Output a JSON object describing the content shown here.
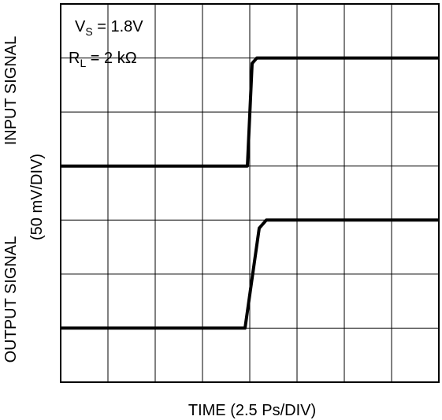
{
  "chart_data": {
    "type": "line",
    "title": "",
    "xlabel": "TIME (2.5 Ps/DIV)",
    "ylabel_input": "INPUT SIGNAL",
    "ylabel_output": "OUTPUT SIGNAL",
    "ylabel_scale": "(50 mV/DIV)",
    "grid": true,
    "x_divisions": 8,
    "y_divisions": 7,
    "xlim": [
      0,
      8
    ],
    "ylim": [
      0,
      7
    ],
    "annotations": {
      "vs_main": "V",
      "vs_sub": "S",
      "vs_value": " = 1.8V",
      "rl_main": "R",
      "rl_sub": "L",
      "rl_value": " = 2 kΩ"
    },
    "series": [
      {
        "role": "input",
        "x": [
          0,
          3.95,
          4.05,
          4.15,
          8
        ],
        "y": [
          4,
          4,
          5.9,
          6.0,
          6.0
        ]
      },
      {
        "role": "output",
        "x": [
          0,
          3.9,
          4.2,
          4.35,
          8
        ],
        "y": [
          1,
          1,
          2.85,
          3.0,
          3.0
        ]
      }
    ]
  }
}
